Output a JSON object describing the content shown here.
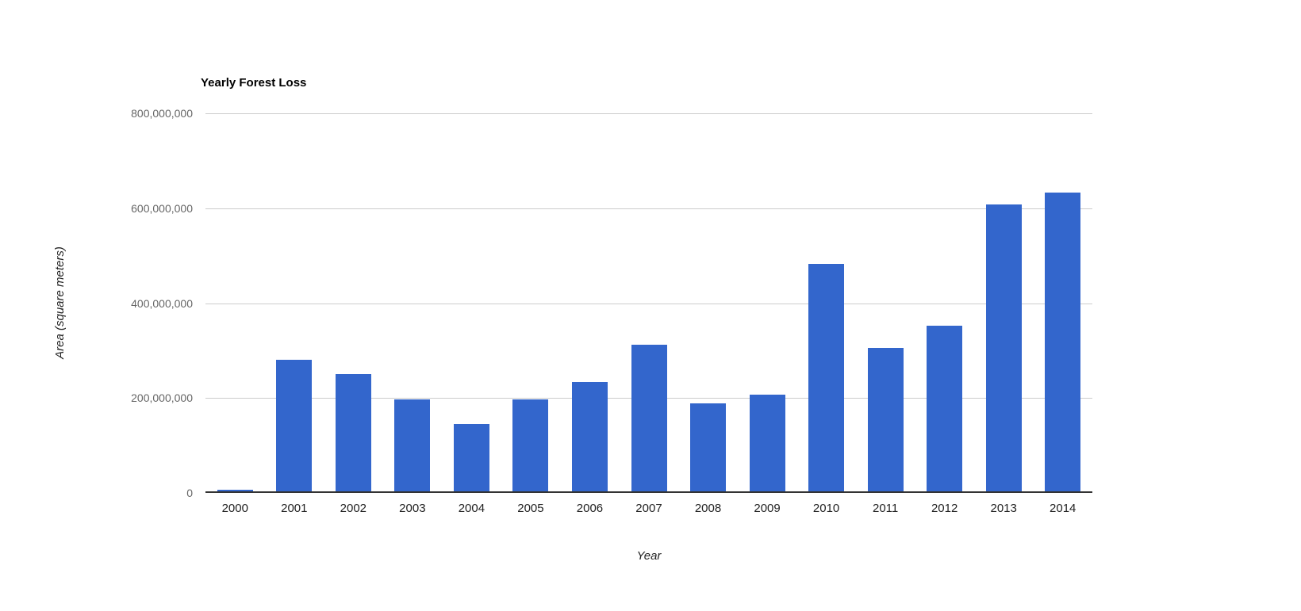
{
  "chart_data": {
    "type": "bar",
    "title": "Yearly Forest Loss",
    "xlabel": "Year",
    "ylabel": "Area (square meters)",
    "categories": [
      "2000",
      "2001",
      "2002",
      "2003",
      "2004",
      "2005",
      "2006",
      "2007",
      "2008",
      "2009",
      "2010",
      "2011",
      "2012",
      "2013",
      "2014"
    ],
    "values": [
      3000000,
      278000000,
      249000000,
      194000000,
      142000000,
      194000000,
      231000000,
      311000000,
      187000000,
      205000000,
      482000000,
      304000000,
      351000000,
      607000000,
      632000000
    ],
    "ylim": [
      0,
      800000000
    ],
    "y_ticks": [
      {
        "value": 0,
        "label": "0"
      },
      {
        "value": 200000000,
        "label": "200,000,000"
      },
      {
        "value": 400000000,
        "label": "400,000,000"
      },
      {
        "value": 600000000,
        "label": "600,000,000"
      },
      {
        "value": 800000000,
        "label": "800,000,000"
      }
    ],
    "grid": true,
    "legend_position": "none",
    "colors": {
      "bar": "#3366cc",
      "gridline": "#cccccc",
      "axis_line": "#333333",
      "y_tick_text": "#666666",
      "x_tick_text": "#222222",
      "title_text": "#000000",
      "axis_title_text": "#222222"
    }
  }
}
